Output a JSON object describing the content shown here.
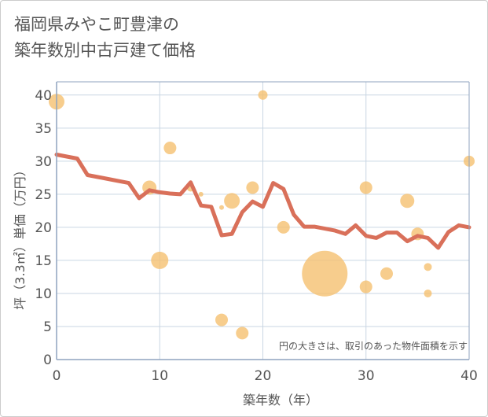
{
  "title_line1": "福岡県みやこ町豊津の",
  "title_line2": "築年数別中古戸建て価格",
  "chart_data": {
    "type": "scatter",
    "title": "福岡県みやこ町豊津の築年数別中古戸建て価格",
    "xlabel": "築年数（年）",
    "ylabel": "坪（3.3㎡）単価（万円）",
    "xlim": [
      0,
      40
    ],
    "ylim": [
      0,
      42
    ],
    "x_ticks": [
      0,
      10,
      20,
      30,
      40
    ],
    "y_ticks": [
      0,
      5,
      10,
      15,
      20,
      25,
      30,
      35,
      40
    ],
    "grid": true,
    "note": "円の大きさは、取引のあった物件面積を示す",
    "colors": {
      "bubble": "#f5c070",
      "line": "#d9705a",
      "grid": "#c9d6e3",
      "axis": "#8fa3bf"
    },
    "bubbles": [
      {
        "x": 0,
        "y": 39,
        "size": 10
      },
      {
        "x": 9,
        "y": 26,
        "size": 9
      },
      {
        "x": 10,
        "y": 15,
        "size": 11
      },
      {
        "x": 11,
        "y": 32,
        "size": 8
      },
      {
        "x": 13,
        "y": 26,
        "size": 5
      },
      {
        "x": 14,
        "y": 25,
        "size": 3
      },
      {
        "x": 16,
        "y": 6,
        "size": 8
      },
      {
        "x": 16,
        "y": 23,
        "size": 3
      },
      {
        "x": 17,
        "y": 24,
        "size": 10
      },
      {
        "x": 18,
        "y": 4,
        "size": 8
      },
      {
        "x": 19,
        "y": 26,
        "size": 8
      },
      {
        "x": 20,
        "y": 40,
        "size": 6
      },
      {
        "x": 22,
        "y": 20,
        "size": 8
      },
      {
        "x": 26,
        "y": 13,
        "size": 29
      },
      {
        "x": 30,
        "y": 26,
        "size": 8
      },
      {
        "x": 30,
        "y": 11,
        "size": 8
      },
      {
        "x": 32,
        "y": 13,
        "size": 8
      },
      {
        "x": 34,
        "y": 24,
        "size": 9
      },
      {
        "x": 35,
        "y": 19,
        "size": 8
      },
      {
        "x": 36,
        "y": 14,
        "size": 5
      },
      {
        "x": 36,
        "y": 10,
        "size": 5
      },
      {
        "x": 40,
        "y": 30,
        "size": 7
      }
    ],
    "trend": {
      "x": [
        0,
        1,
        2,
        3,
        4,
        5,
        6,
        7,
        8,
        9,
        10,
        11,
        12,
        13,
        14,
        15,
        16,
        17,
        18,
        19,
        20,
        21,
        22,
        23,
        24,
        25,
        26,
        27,
        28,
        29,
        30,
        31,
        32,
        33,
        34,
        35,
        36,
        37,
        38,
        39,
        40
      ],
      "y": [
        31,
        30.7,
        30.4,
        27.9,
        27.6,
        27.3,
        27.0,
        26.7,
        24.4,
        25.6,
        25.3,
        25.1,
        25.0,
        26.8,
        23.3,
        23.1,
        18.8,
        19.0,
        22.3,
        23.9,
        23.1,
        26.7,
        25.8,
        21.9,
        20.1,
        20.1,
        19.8,
        19.5,
        19.0,
        20.3,
        18.7,
        18.4,
        19.2,
        19.2,
        17.9,
        18.7,
        18.4,
        16.9,
        19.3,
        20.3,
        20.0
      ]
    }
  }
}
